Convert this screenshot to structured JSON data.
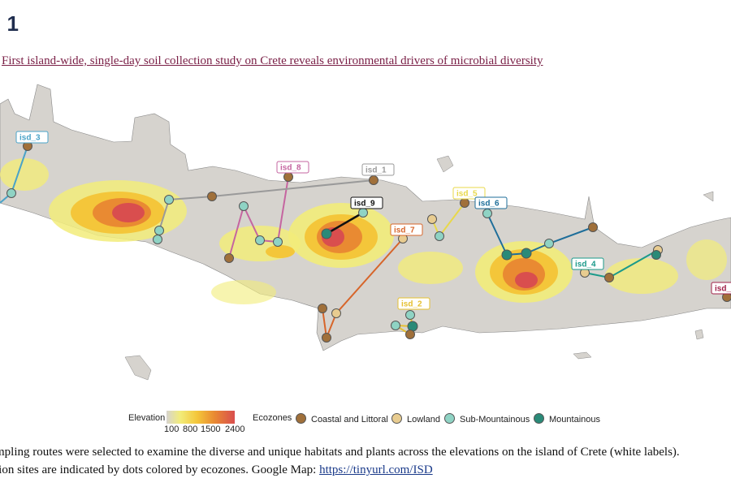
{
  "figure_number": ". 1",
  "headline": "First island-wide, single-day soil collection study on Crete reveals environmental drivers of microbial diversity",
  "legend": {
    "elevation_title": "Elevation",
    "elevation_ticks": [
      "100",
      "800",
      "1500",
      "2400"
    ],
    "ecozones_title": "Ecozones",
    "ecozones": [
      {
        "label": "Coastal and Littoral",
        "color": "#a0703a"
      },
      {
        "label": "Lowland",
        "color": "#e8cc90"
      },
      {
        "label": "Sub-Mountainous",
        "color": "#8fd3c4"
      },
      {
        "label": "Mountainous",
        "color": "#2a8a78"
      }
    ]
  },
  "routes": [
    {
      "label": "isd_3",
      "color": "#4aa3c8"
    },
    {
      "label": "isd_8",
      "color": "#c565a0"
    },
    {
      "label": "isd_1",
      "color": "#9a9a9a"
    },
    {
      "label": "isd_9",
      "color": "#111111"
    },
    {
      "label": "isd_7",
      "color": "#d7652a"
    },
    {
      "label": "isd_5",
      "color": "#e8d84a"
    },
    {
      "label": "isd_6",
      "color": "#1e6e9a"
    },
    {
      "label": "isd_4",
      "color": "#1b9a8a"
    },
    {
      "label": "isd_2",
      "color": "#e6c030"
    },
    {
      "label": "isd_",
      "color": "#a0224a"
    }
  ],
  "caption": {
    "line1": "mpling routes were selected to examine the diverse and unique habitats and plants across the elevations on the island of Crete (white labels).",
    "line2_prefix": "tion sites are indicated by dots colored by ecozones. Google Map: ",
    "link": "https://tinyurl.com/ISD"
  }
}
